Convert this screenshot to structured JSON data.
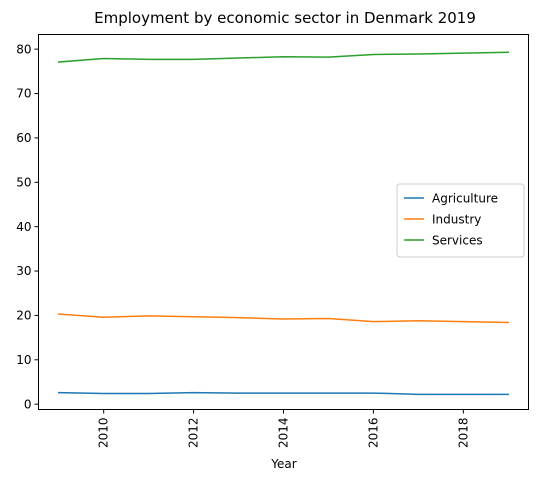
{
  "chart_data": {
    "type": "line",
    "title": "Employment by economic sector in Denmark 2019",
    "xlabel": "Year",
    "ylabel": "",
    "x": [
      2009,
      2010,
      2011,
      2012,
      2013,
      2014,
      2015,
      2016,
      2017,
      2018,
      2019
    ],
    "xlim": [
      2008.55,
      2019.45
    ],
    "ylim": [
      -1.2,
      83.3
    ],
    "xticks": [
      2010,
      2012,
      2014,
      2016,
      2018
    ],
    "yticks": [
      0,
      10,
      20,
      30,
      40,
      50,
      60,
      70,
      80
    ],
    "grid": false,
    "legend_position": "center-right",
    "series": [
      {
        "name": "Agriculture",
        "color": "#1f77b4",
        "values": [
          2.6,
          2.4,
          2.4,
          2.6,
          2.5,
          2.5,
          2.5,
          2.5,
          2.2,
          2.2,
          2.2
        ]
      },
      {
        "name": "Industry",
        "color": "#ff7f0e",
        "values": [
          20.3,
          19.6,
          19.9,
          19.7,
          19.5,
          19.2,
          19.3,
          18.6,
          18.8,
          18.6,
          18.4
        ]
      },
      {
        "name": "Services",
        "color": "#2ca02c",
        "values": [
          77.1,
          77.9,
          77.7,
          77.7,
          78.0,
          78.3,
          78.2,
          78.8,
          78.9,
          79.1,
          79.3
        ]
      }
    ]
  }
}
